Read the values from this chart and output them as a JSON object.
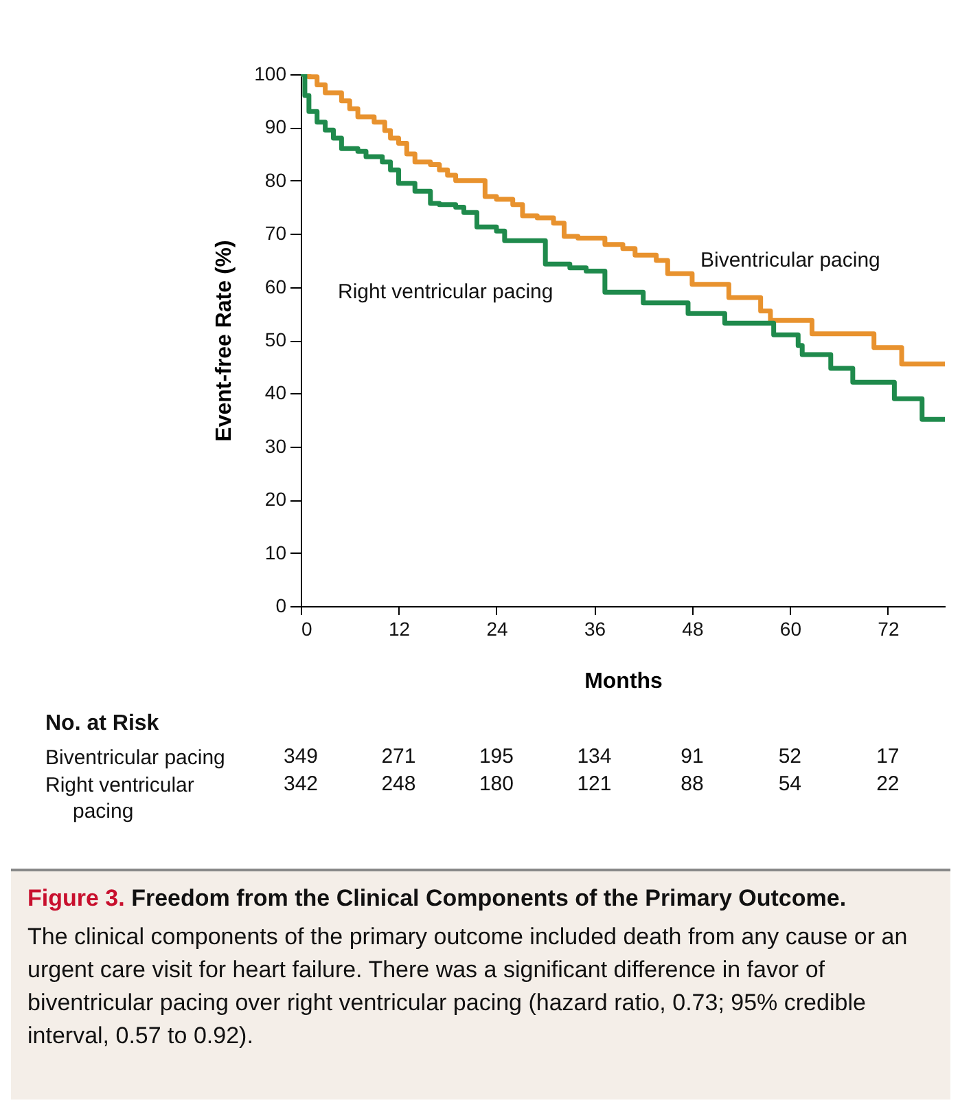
{
  "chart_data": {
    "type": "step",
    "title": "Figure 3. Freedom from the Clinical Components of the Primary Outcome.",
    "subtitle": "The clinical components of the primary outcome included death from any cause or an urgent care visit for heart failure. There was a significant difference in favor of biventricular pacing over right ventricular pacing (hazard ratio, 0.73; 95% credible interval, 0.57 to 0.92).",
    "xlabel": "Months",
    "ylabel": "Event-free Rate (%)",
    "series": [
      {
        "name": "Biventricular pacing",
        "color": "#e8922e",
        "x": [
          0,
          1,
          2,
          3,
          5,
          6,
          7,
          9,
          10.3,
          11,
          12,
          13,
          14,
          15.9,
          17,
          18,
          19,
          22.6,
          24,
          26,
          27.2,
          29,
          31,
          32.3,
          34,
          37.3,
          39.5,
          41,
          43.6,
          45,
          48,
          52.5,
          56.4,
          57.6,
          62.7,
          70.3,
          73.7,
          79
        ],
        "values": [
          100,
          99.5,
          98,
          96.5,
          95,
          93.5,
          92,
          91,
          89.4,
          88,
          87,
          85,
          83.5,
          83,
          82,
          81,
          80,
          77,
          76.5,
          75.5,
          73.4,
          73,
          72,
          69.5,
          69.2,
          68,
          67.2,
          66,
          65,
          62.5,
          60.5,
          58,
          55.5,
          53.7,
          51.2,
          48.6,
          45.5,
          45.5
        ]
      },
      {
        "name": "Right ventricular pacing",
        "color": "#1f8a4c",
        "x": [
          0,
          0.5,
          1,
          2,
          3,
          4,
          5,
          7,
          8,
          10,
          11,
          12,
          14,
          15.9,
          17,
          19,
          20,
          21.6,
          24,
          25,
          27,
          30,
          33,
          35,
          37.3,
          42,
          47.5,
          52,
          58,
          61,
          61.5,
          65,
          67.7,
          72.8,
          76.2,
          79
        ],
        "values": [
          100,
          96,
          93,
          91,
          89.5,
          88,
          86,
          85.5,
          84.5,
          83.5,
          82,
          79.5,
          78,
          75.7,
          75.5,
          75,
          74,
          71.3,
          70.5,
          68.7,
          68.7,
          64.3,
          63.6,
          63,
          59,
          57,
          55,
          53.2,
          51,
          49,
          47.3,
          44.7,
          42.1,
          39,
          35.1,
          35.1
        ]
      }
    ],
    "xlim": [
      0,
      79
    ],
    "xticks": [
      0,
      12,
      24,
      36,
      48,
      60,
      72
    ],
    "ylim": [
      0,
      100
    ],
    "yticks": [
      0,
      10,
      20,
      30,
      40,
      50,
      60,
      70,
      80,
      90,
      100
    ],
    "grid": false,
    "legend": false,
    "annotations": [
      "No. at Risk",
      "Biventricular pacing 349 271 195 134 91 52 17",
      "Right ventricular pacing 342 248 180 121 88 54 22"
    ]
  }
}
